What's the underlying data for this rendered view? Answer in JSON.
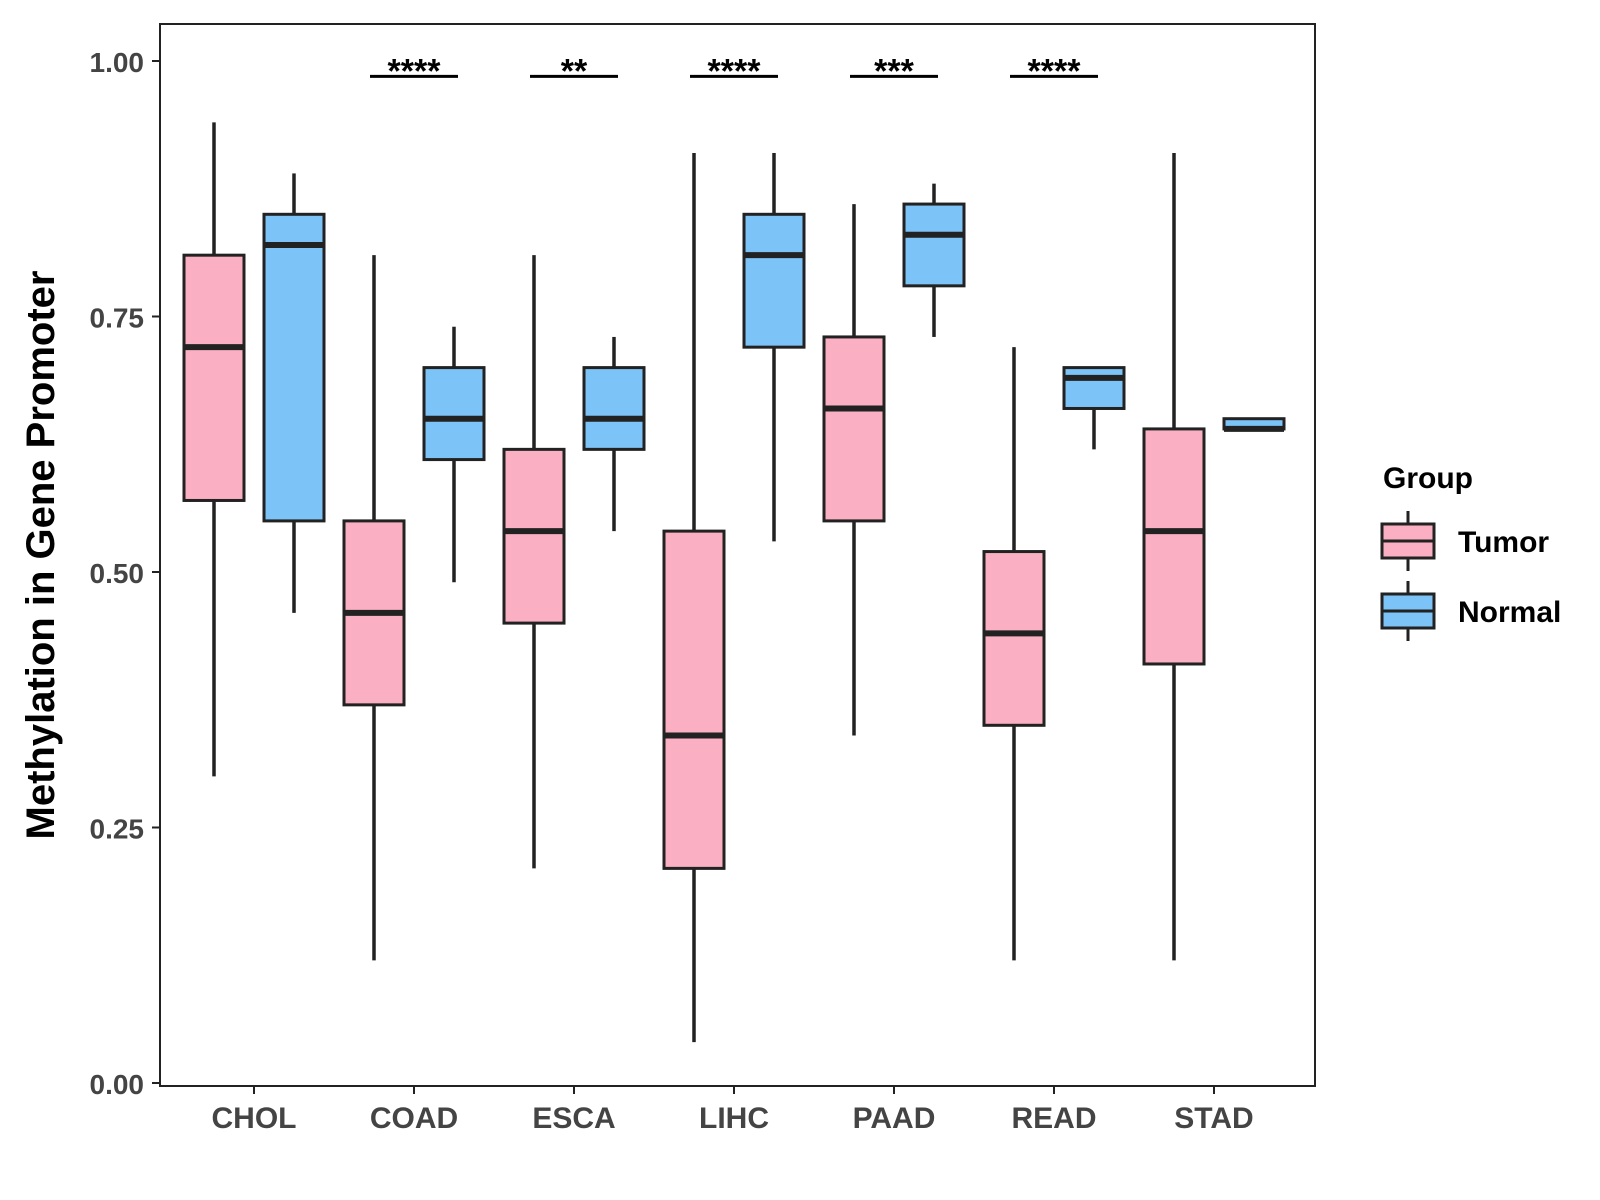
{
  "chart_data": {
    "type": "boxplot",
    "title": "",
    "xlabel": "",
    "ylabel": "Methylation in Gene Promoter",
    "ylim": [
      -0.02,
      1.05
    ],
    "yticks": [
      0.0,
      0.25,
      0.5,
      0.75,
      1.0
    ],
    "ytick_labels": [
      "0.00",
      "0.25",
      "0.50",
      "0.75",
      "1.00"
    ],
    "categories": [
      "CHOL",
      "COAD",
      "ESCA",
      "LIHC",
      "PAAD",
      "READ",
      "STAD"
    ],
    "legend": {
      "title": "Group",
      "position": "right",
      "entries": [
        {
          "label": "Tumor",
          "color": "#FAB0C2"
        },
        {
          "label": "Normal",
          "color": "#7CC3F7"
        }
      ]
    },
    "series": [
      {
        "name": "Tumor",
        "color": "#FAB0C2",
        "boxes": [
          {
            "category": "CHOL",
            "min": 0.3,
            "q1": 0.57,
            "median": 0.72,
            "q3": 0.81,
            "max": 0.94
          },
          {
            "category": "COAD",
            "min": 0.12,
            "q1": 0.37,
            "median": 0.46,
            "q3": 0.55,
            "max": 0.81
          },
          {
            "category": "ESCA",
            "min": 0.21,
            "q1": 0.45,
            "median": 0.54,
            "q3": 0.62,
            "max": 0.81
          },
          {
            "category": "LIHC",
            "min": 0.04,
            "q1": 0.21,
            "median": 0.34,
            "q3": 0.54,
            "max": 0.91
          },
          {
            "category": "PAAD",
            "min": 0.34,
            "q1": 0.55,
            "median": 0.66,
            "q3": 0.73,
            "max": 0.86
          },
          {
            "category": "READ",
            "min": 0.12,
            "q1": 0.35,
            "median": 0.44,
            "q3": 0.52,
            "max": 0.72
          },
          {
            "category": "STAD",
            "min": 0.12,
            "q1": 0.41,
            "median": 0.54,
            "q3": 0.64,
            "max": 0.91
          }
        ]
      },
      {
        "name": "Normal",
        "color": "#7CC3F7",
        "boxes": [
          {
            "category": "CHOL",
            "min": 0.46,
            "q1": 0.55,
            "median": 0.82,
            "q3": 0.85,
            "max": 0.89
          },
          {
            "category": "COAD",
            "min": 0.49,
            "q1": 0.61,
            "median": 0.65,
            "q3": 0.7,
            "max": 0.74
          },
          {
            "category": "ESCA",
            "min": 0.54,
            "q1": 0.62,
            "median": 0.65,
            "q3": 0.7,
            "max": 0.73
          },
          {
            "category": "LIHC",
            "min": 0.53,
            "q1": 0.72,
            "median": 0.81,
            "q3": 0.85,
            "max": 0.91
          },
          {
            "category": "PAAD",
            "min": 0.73,
            "q1": 0.78,
            "median": 0.83,
            "q3": 0.86,
            "max": 0.88
          },
          {
            "category": "READ",
            "min": 0.62,
            "q1": 0.66,
            "median": 0.69,
            "q3": 0.7,
            "max": 0.7
          },
          {
            "category": "STAD",
            "min": 0.64,
            "q1": 0.64,
            "median": 0.64,
            "q3": 0.65,
            "max": 0.65
          }
        ]
      }
    ],
    "annotations": [
      {
        "category": "COAD",
        "label": "****",
        "y": 0.985
      },
      {
        "category": "ESCA",
        "label": "**",
        "y": 0.985
      },
      {
        "category": "LIHC",
        "label": "****",
        "y": 0.985
      },
      {
        "category": "PAAD",
        "label": "***",
        "y": 0.985
      },
      {
        "category": "READ",
        "label": "****",
        "y": 0.985
      }
    ]
  }
}
